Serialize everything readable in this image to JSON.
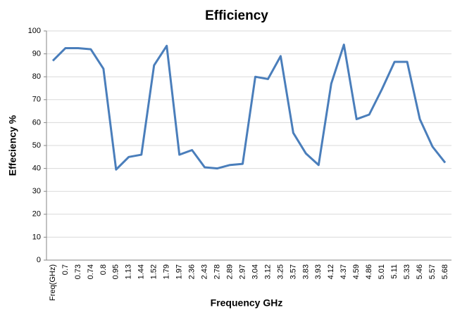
{
  "chart_data": {
    "type": "line",
    "title": "Efficiency",
    "x_label": "Frequency GHz",
    "y_label": "Effeciency %",
    "categories": [
      "Freq(GHz)",
      "0.7",
      "0.73",
      "0.74",
      "0.8",
      "0.95",
      "1.13",
      "1.44",
      "1.52",
      "1.79",
      "1.97",
      "2.36",
      "2.43",
      "2.78",
      "2.89",
      "2.97",
      "3.04",
      "3.12",
      "3.25",
      "3.57",
      "3.83",
      "3.93",
      "4.12",
      "4.37",
      "4.59",
      "4.86",
      "5.01",
      "5.11",
      "5.33",
      "5.46",
      "5.57",
      "5.68"
    ],
    "values": [
      87,
      92.5,
      92.5,
      92,
      83.5,
      39.5,
      45,
      46,
      85,
      93.5,
      46,
      48,
      40.5,
      40,
      41.5,
      42,
      80,
      79,
      89,
      55.5,
      46.5,
      41.5,
      77,
      94,
      61.5,
      63.5,
      74.5,
      86.5,
      86.5,
      61.5,
      49.5,
      42.5
    ],
    "color": "#4a7ebb",
    "ylim": [
      0,
      100
    ],
    "yticks": [
      0,
      10,
      20,
      30,
      40,
      50,
      60,
      70,
      80,
      90,
      100
    ],
    "grid": true
  }
}
